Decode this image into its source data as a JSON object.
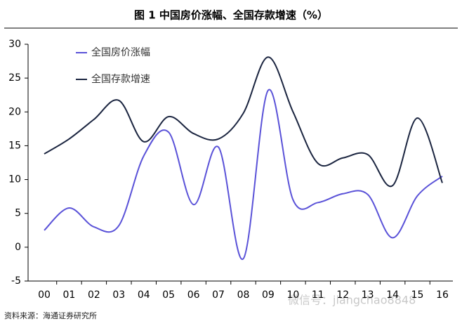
{
  "chart_data": {
    "type": "line",
    "title": "图 1   中国房价涨幅、全国存款增速（%）",
    "categories": [
      "00",
      "01",
      "02",
      "03",
      "04",
      "05",
      "06",
      "07",
      "08",
      "09",
      "10",
      "11",
      "12",
      "13",
      "14",
      "15",
      "16"
    ],
    "series": [
      {
        "name": "全国房价涨幅",
        "color": "#5a52d8",
        "values": [
          2.5,
          5.8,
          3.0,
          3.2,
          13.5,
          17.0,
          6.3,
          14.8,
          -1.7,
          23.2,
          7.0,
          6.6,
          7.9,
          7.8,
          1.4,
          7.6,
          10.5
        ]
      },
      {
        "name": "全国存款增速",
        "color": "#1b2540",
        "values": [
          13.8,
          16.0,
          18.9,
          21.7,
          15.6,
          19.3,
          16.8,
          16.0,
          19.8,
          28.1,
          20.0,
          12.4,
          13.2,
          13.7,
          9.1,
          19.1,
          9.5
        ]
      }
    ],
    "ylim": [
      -5,
      30
    ],
    "yticks": [
      -5,
      0,
      5,
      10,
      15,
      20,
      25,
      30
    ],
    "source": "资料来源：海通证券研究所",
    "watermark": "微信号：jiangchao8848"
  }
}
